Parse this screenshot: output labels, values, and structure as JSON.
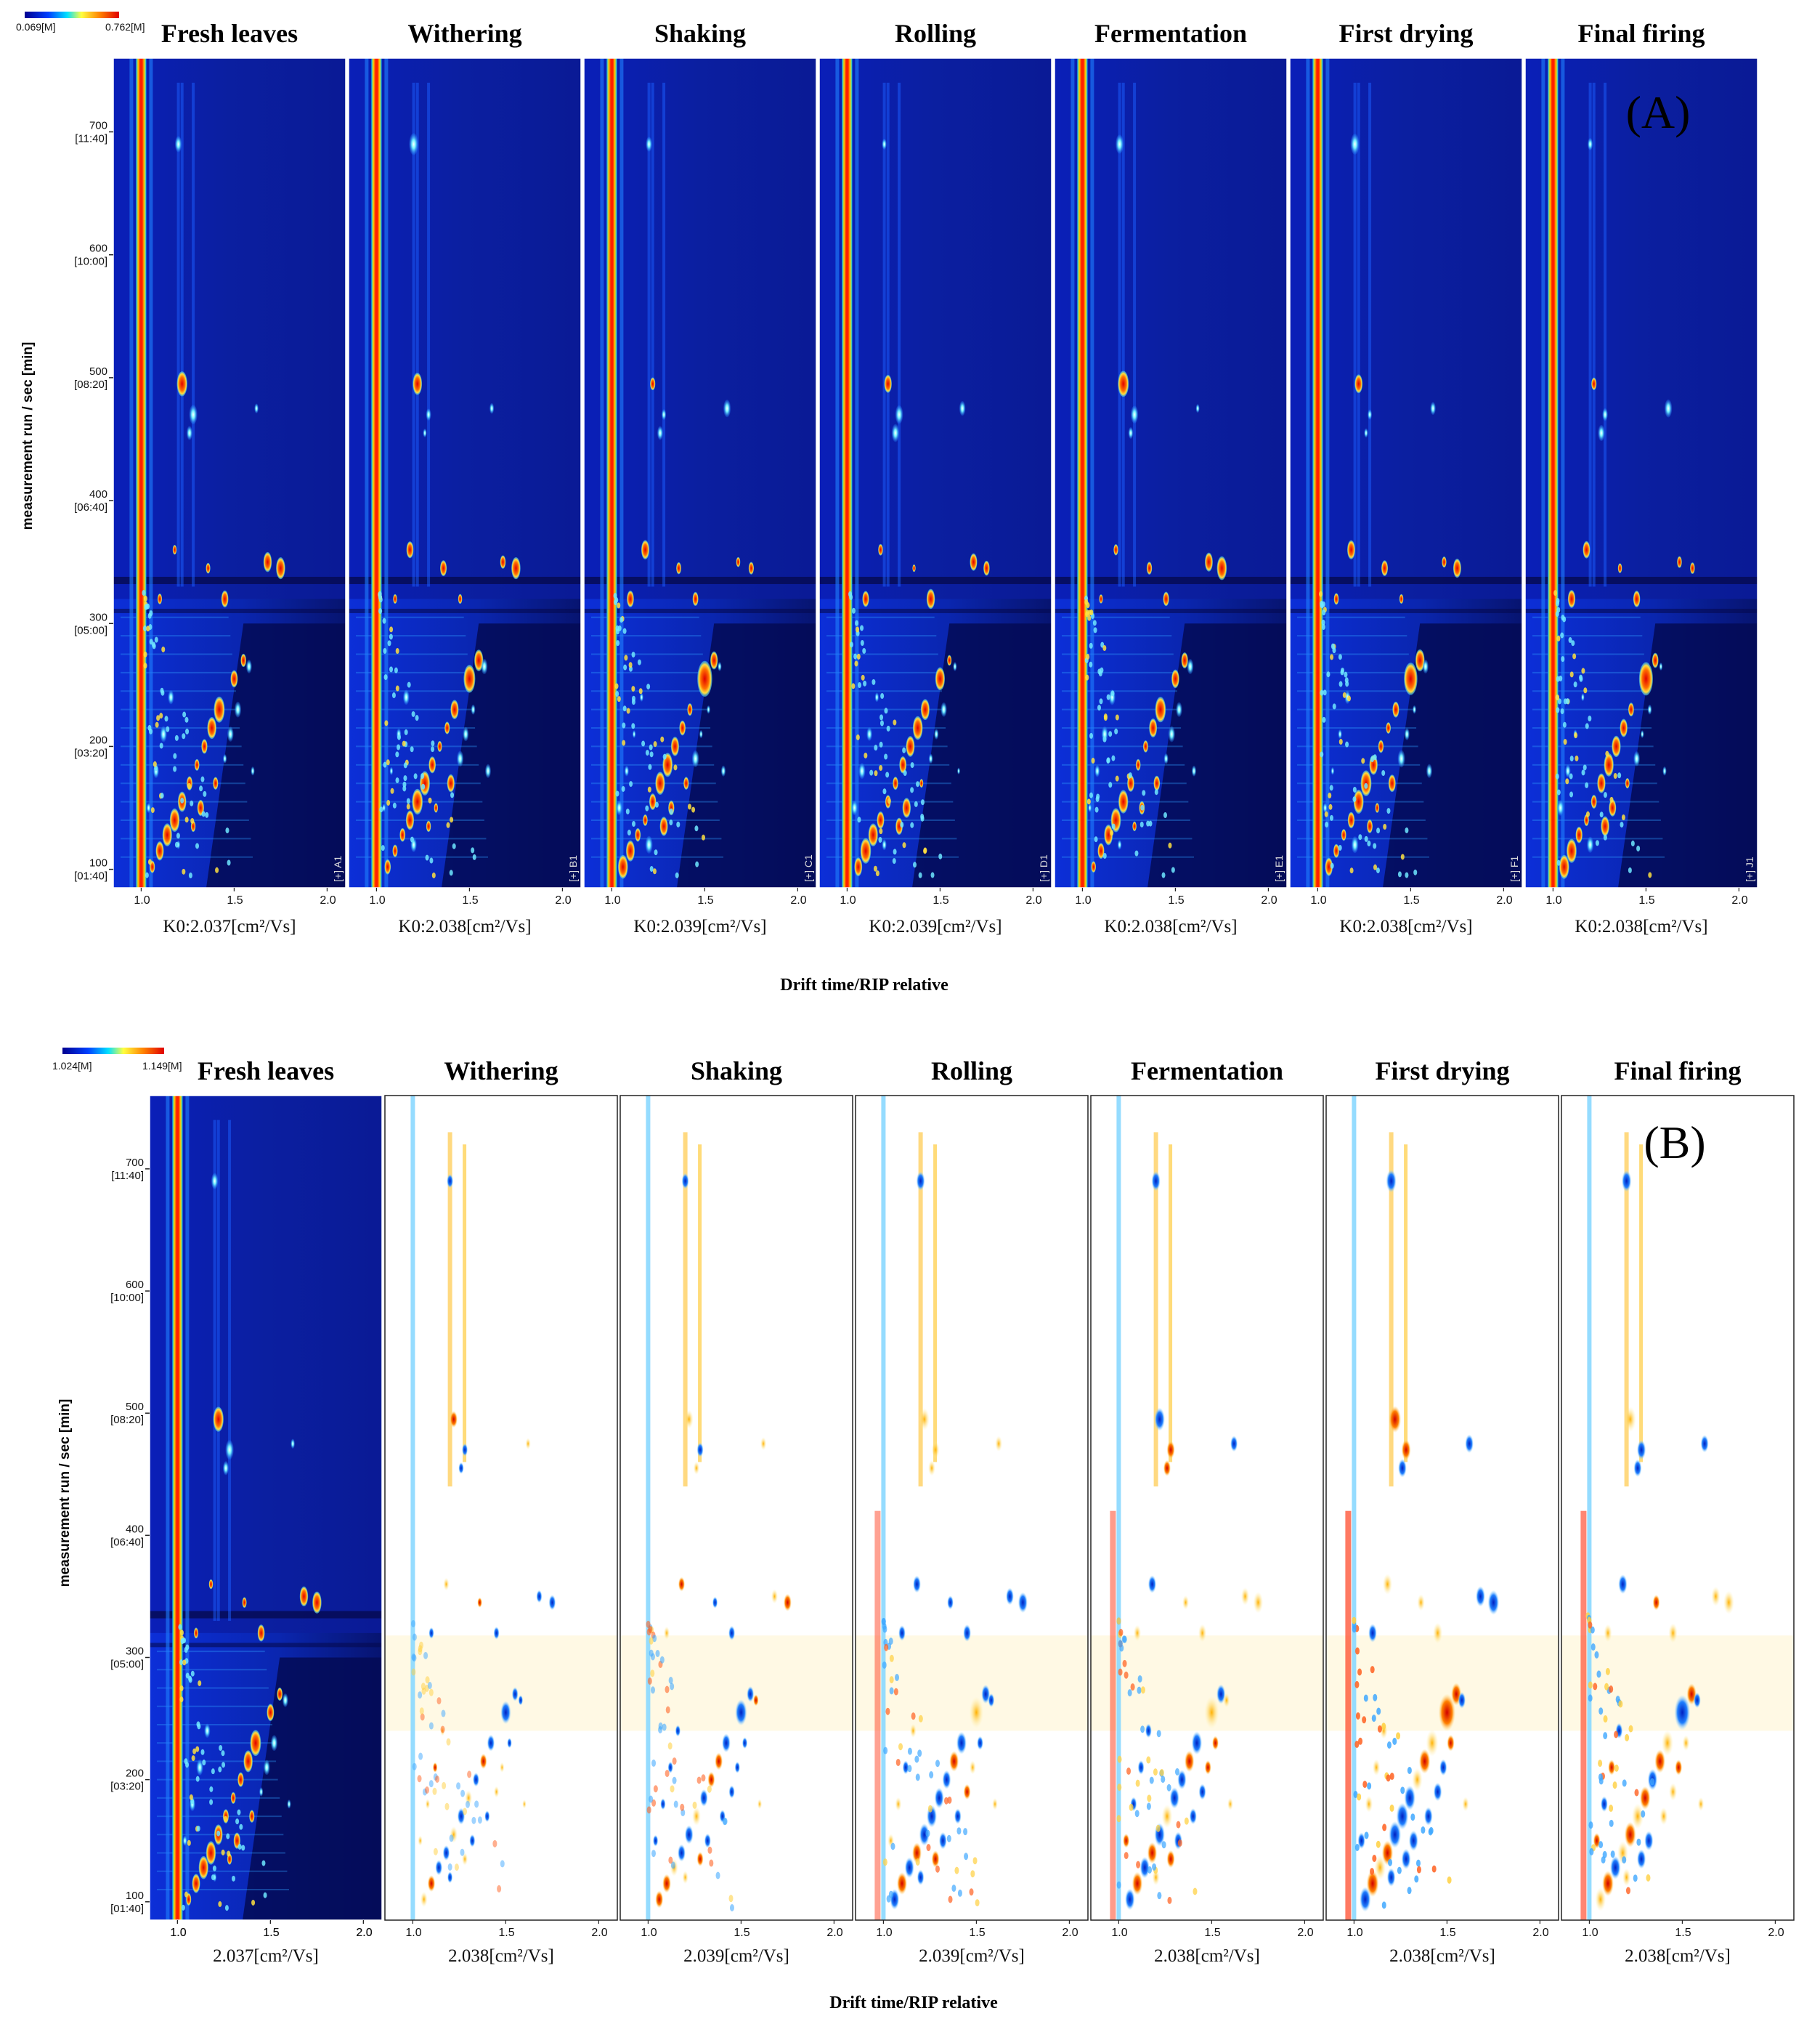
{
  "chart_data": [
    {
      "type": "heatmap",
      "panel_label": "(A)",
      "colorbar": {
        "min_label": "0.069[M]",
        "max_label": "0.762[M]",
        "colors": [
          "#000090",
          "#0040ff",
          "#00e0ff",
          "#ffff40",
          "#ff8000",
          "#e00000"
        ]
      },
      "xlabel": "Drift time/RIP relative",
      "ylabel": "measurement run / sec [min]",
      "xlim": [
        0.85,
        2.1
      ],
      "ylim": [
        85,
        760
      ],
      "x_ticks": [
        "1.0",
        "1.5",
        "2.0"
      ],
      "y_ticks": [
        {
          "value": 100,
          "label": "100",
          "sub": "[01:40]"
        },
        {
          "value": 200,
          "label": "200",
          "sub": "[03:20]"
        },
        {
          "value": 300,
          "label": "300",
          "sub": "[05:00]"
        },
        {
          "value": 400,
          "label": "400",
          "sub": "[06:40]"
        },
        {
          "value": 500,
          "label": "500",
          "sub": "[08:20]"
        },
        {
          "value": 600,
          "label": "600",
          "sub": "[10:00]"
        },
        {
          "value": 700,
          "label": "700",
          "sub": "[11:40]"
        }
      ],
      "samples": [
        {
          "name": "Fresh leaves",
          "k0": "K0:2.037[cm²/Vs]",
          "tag": "[+] A1"
        },
        {
          "name": "Withering",
          "k0": "K0:2.038[cm²/Vs]",
          "tag": "[+] B1"
        },
        {
          "name": "Shaking",
          "k0": "K0:2.039[cm²/Vs]",
          "tag": "[+] C1"
        },
        {
          "name": "Rolling",
          "k0": "K0:2.039[cm²/Vs]",
          "tag": "[+] D1"
        },
        {
          "name": "Fermentation",
          "k0": "K0:2.038[cm²/Vs]",
          "tag": "[+] E1"
        },
        {
          "name": "First drying",
          "k0": "K0:2.038[cm²/Vs]",
          "tag": "[+] F1"
        },
        {
          "name": "Final firing",
          "k0": "K0:2.038[cm²/Vs]",
          "tag": "[+] J1"
        }
      ]
    },
    {
      "type": "heatmap",
      "panel_label": "(B)",
      "colorbar": {
        "min_label": "1.024[M]",
        "max_label": "1.149[M]",
        "colors": [
          "#000090",
          "#0040ff",
          "#00e0ff",
          "#ffff40",
          "#ff8000",
          "#e00000"
        ]
      },
      "xlabel": "Drift time/RIP relative",
      "ylabel": "measurement run / sec [min]",
      "xlim": [
        0.85,
        2.1
      ],
      "ylim": [
        85,
        760
      ],
      "x_ticks": [
        "1.0",
        "1.5",
        "2.0"
      ],
      "y_ticks": [
        {
          "value": 100,
          "label": "100",
          "sub": "[01:40]"
        },
        {
          "value": 200,
          "label": "200",
          "sub": "[03:20]"
        },
        {
          "value": 300,
          "label": "300",
          "sub": "[05:00]"
        },
        {
          "value": 400,
          "label": "400",
          "sub": "[06:40]"
        },
        {
          "value": 500,
          "label": "500",
          "sub": "[08:20]"
        },
        {
          "value": 600,
          "label": "600",
          "sub": "[10:00]"
        },
        {
          "value": 700,
          "label": "700",
          "sub": "[11:40]"
        }
      ],
      "reference": "Fresh leaves",
      "samples": [
        {
          "name": "Fresh leaves",
          "k0": "2.037[cm²/Vs]",
          "mode": "spectrum"
        },
        {
          "name": "Withering",
          "k0": "2.038[cm²/Vs]",
          "mode": "difference"
        },
        {
          "name": "Shaking",
          "k0": "2.039[cm²/Vs]",
          "mode": "difference"
        },
        {
          "name": "Rolling",
          "k0": "2.039[cm²/Vs]",
          "mode": "difference"
        },
        {
          "name": "Fermentation",
          "k0": "2.038[cm²/Vs]",
          "mode": "difference"
        },
        {
          "name": "First drying",
          "k0": "2.038[cm²/Vs]",
          "mode": "difference"
        },
        {
          "name": "Final firing",
          "k0": "2.038[cm²/Vs]",
          "mode": "difference"
        }
      ]
    }
  ]
}
